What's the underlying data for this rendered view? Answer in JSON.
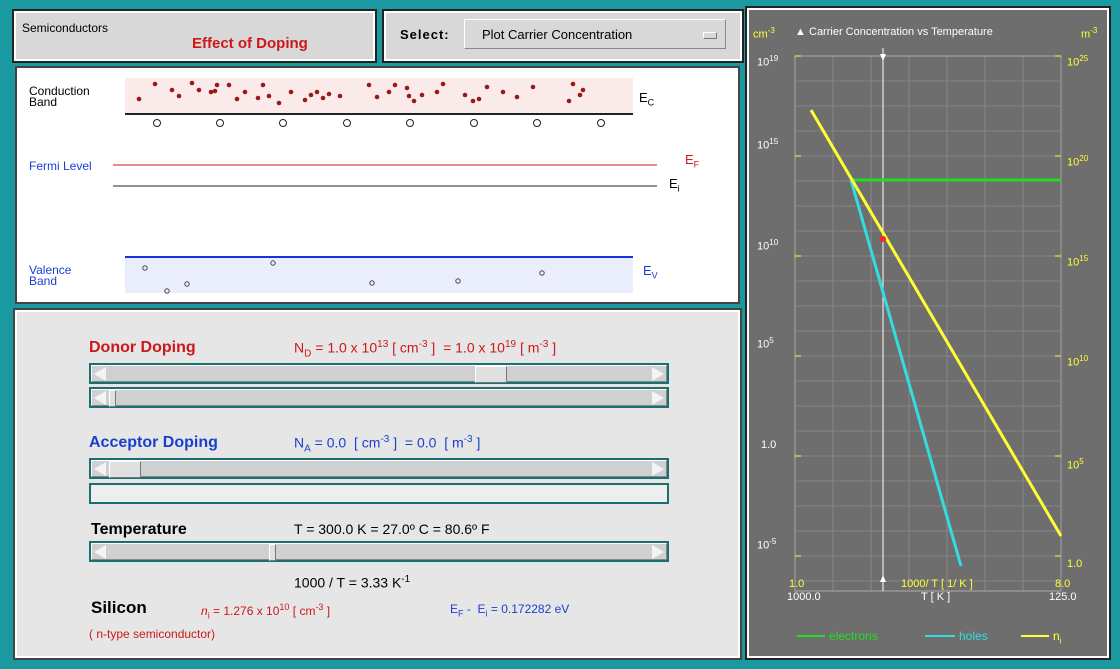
{
  "header": {
    "app_small": "Semiconductors",
    "app_title": "Effect of Doping",
    "select_label": "Select:",
    "select_value": "Plot Carrier Concentration"
  },
  "bands": {
    "conduction_l1": "Conduction",
    "conduction_l2": "Band",
    "ec_label": "E",
    "ec_sub": "C",
    "fermi_label": "Fermi Level",
    "ef_label": "E",
    "ef_sub": "F",
    "ei_label": "E",
    "ei_sub": "i",
    "valence_l1": "Valence",
    "valence_l2": "Band",
    "ev_label": "E",
    "ev_sub": "V"
  },
  "controls": {
    "donor_title": "Donor Doping",
    "donor_value": "N_D = 1.0 x 10^13 [ cm^-3 ]  = 1.0 x 10^19 [ m^-3 ]",
    "donor_coarse_level": 0.72,
    "donor_fine_level": 0.0,
    "acceptor_title": "Acceptor Doping",
    "acceptor_value": "N_A = 0.0  [ cm^-3 ]  = 0.0  [ m^-3 ]",
    "acceptor_level": 0.0,
    "temp_title": "Temperature",
    "temp_value": "T = 300.0 K  = 27.0º C  = 80.6º F",
    "temp_level": 0.3,
    "inv_temp": "1000 / T = 3.33 K^-1",
    "material": "Silicon",
    "material_type": "( n-type semiconductor)",
    "ni_text": "n_i = 1.276 x 10^10 [ cm^-3 ]",
    "ef_ei_text": "E_F -  E_i = 0.172282 eV"
  },
  "graph": {
    "title": "Carrier Concentration vs Temperature",
    "left_unit": "cm-3",
    "right_unit": "m-3",
    "left_ticks": [
      "10^19",
      "10^15",
      "10^10",
      "10^5",
      "1.0",
      "10^-5"
    ],
    "right_ticks": [
      "10^25",
      "10^20",
      "10^15",
      "10^10",
      "10^5",
      "1.0"
    ],
    "x_left_top": "1.0",
    "x_left_bottom": "1000.0",
    "x_mid_top": "1000/ T [ 1/ K ]",
    "x_mid_bottom": "T [ K ]",
    "x_right_top": "8.0",
    "x_right_bottom": "125.0",
    "legend": [
      {
        "label": "electrons",
        "color": "#22dd22"
      },
      {
        "label": "holes",
        "color": "#33dddd"
      },
      {
        "label": "n_i",
        "color": "#ffff33"
      }
    ]
  },
  "colors": {
    "accent_red": "#cc1818",
    "accent_blue": "#1a3fd0",
    "background": "#1a9aa0",
    "electron_dot": "#9a1a1a"
  }
}
